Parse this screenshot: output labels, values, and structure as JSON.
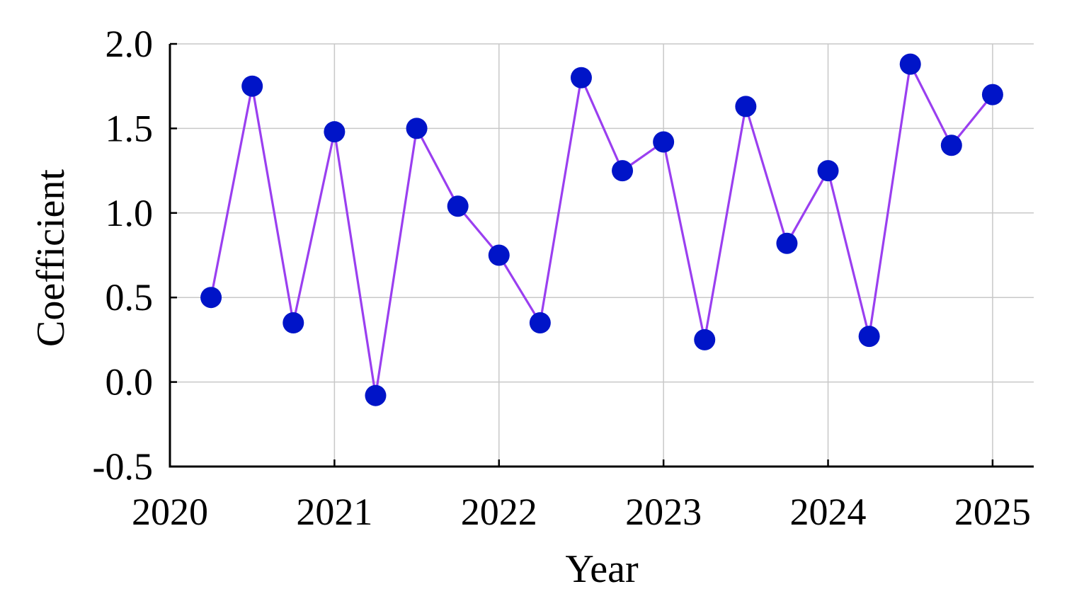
{
  "chart_data": {
    "type": "line",
    "title": "",
    "xlabel": "Year",
    "ylabel": "Coefficient",
    "xlim": [
      2020.0,
      2025.25
    ],
    "ylim": [
      -0.5,
      2.0
    ],
    "xticks": [
      2020,
      2021,
      2022,
      2023,
      2024,
      2025
    ],
    "yticks": [
      -0.5,
      0.0,
      0.5,
      1.0,
      1.5,
      2.0
    ],
    "ytick_labels": [
      "-0.5",
      "0.0",
      "0.5",
      "1.0",
      "1.5",
      "2.0"
    ],
    "grid": true,
    "legend": "none",
    "line_color": "#9a3ff0",
    "marker_color": "#0014c8",
    "series": [
      {
        "x": [
          2020.25,
          2020.5,
          2020.75,
          2021.0,
          2021.25,
          2021.5,
          2021.75,
          2022.0,
          2022.25,
          2022.5,
          2022.75,
          2023.0,
          2023.25,
          2023.5,
          2023.75,
          2024.0,
          2024.25,
          2024.5,
          2024.75,
          2025.0
        ],
        "values": [
          0.5,
          1.75,
          0.35,
          1.48,
          -0.08,
          1.5,
          1.04,
          0.75,
          0.35,
          1.8,
          1.25,
          1.42,
          0.25,
          1.63,
          0.82,
          1.25,
          0.27,
          1.88,
          1.4,
          1.7
        ]
      }
    ]
  }
}
